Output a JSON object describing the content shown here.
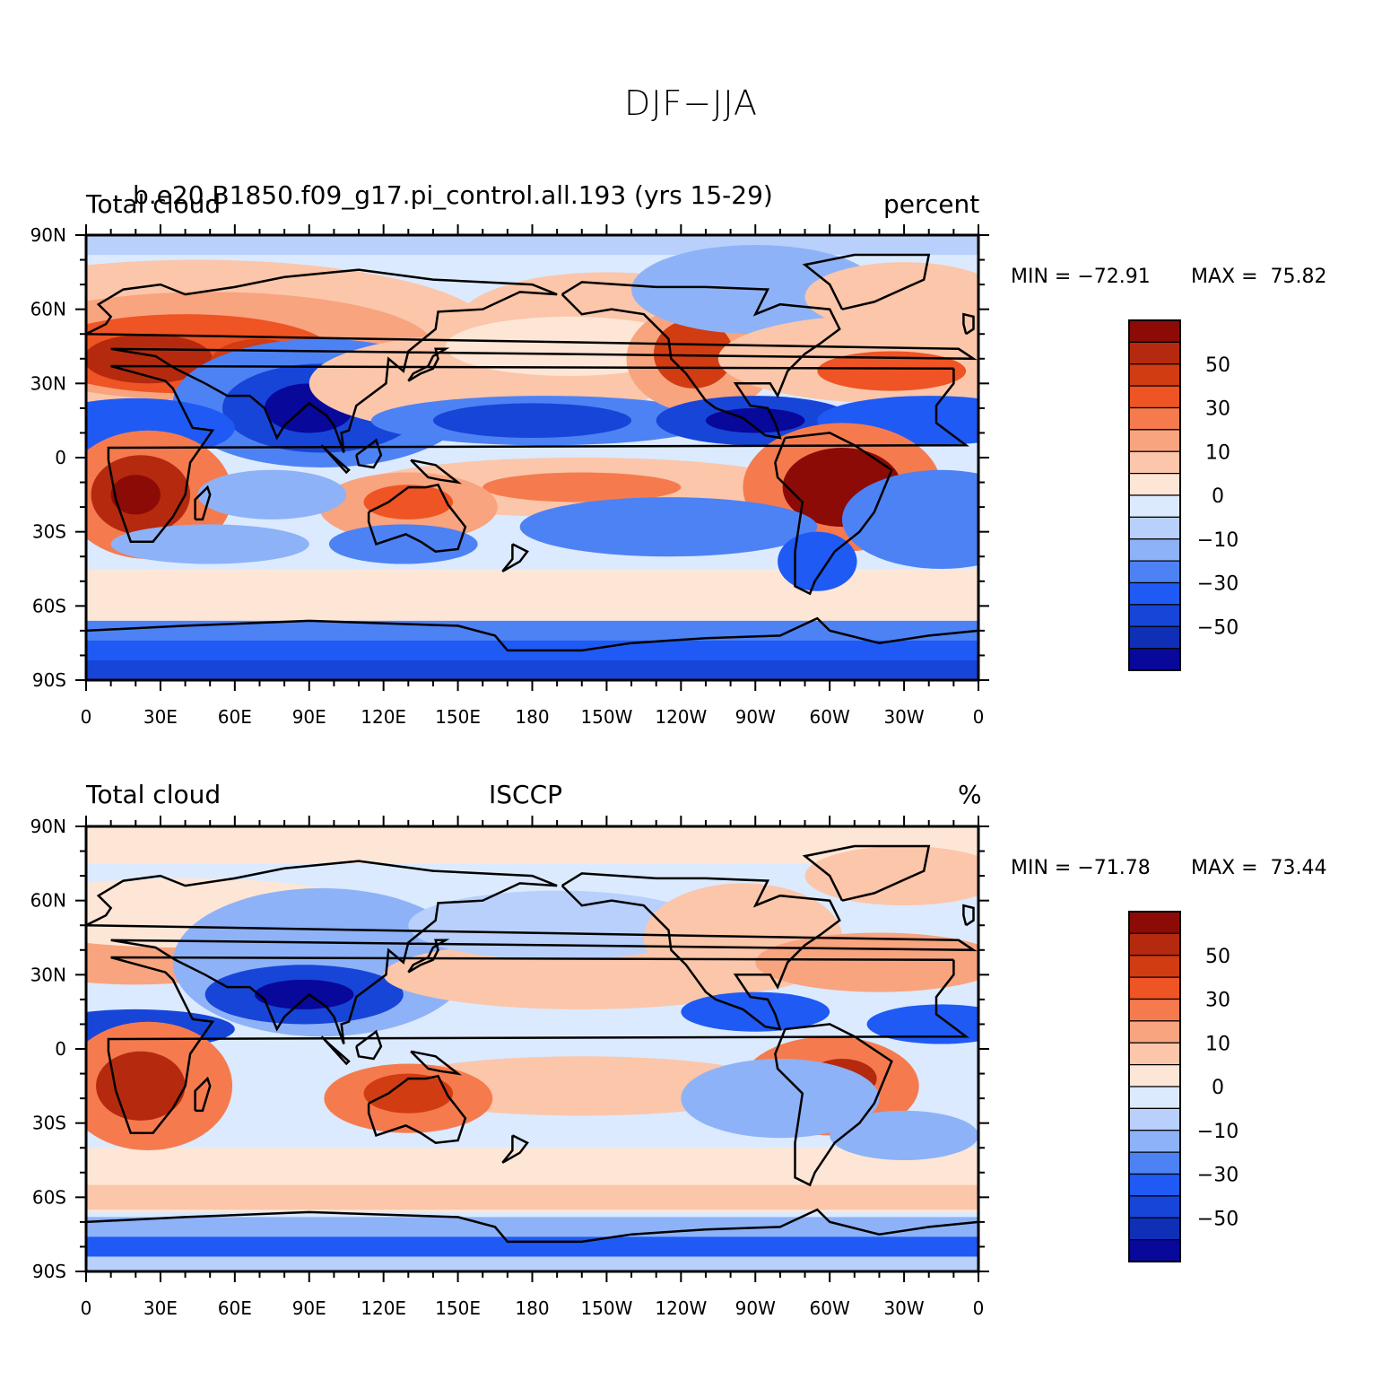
{
  "figure_title": "DJF−JJA",
  "colors": {
    "levels": [
      "#08089a",
      "#0f2fb6",
      "#1745d8",
      "#1f5af5",
      "#4d82f5",
      "#8eb2f7",
      "#b8d0fb",
      "#dbeafe",
      "#fde6d6",
      "#fbc6aa",
      "#f8a47f",
      "#f57b4f",
      "#ee5424",
      "#d13c12",
      "#b52a0e",
      "#8c0b06"
    ],
    "coast": "#000000"
  },
  "axes": {
    "lat_ticks": [
      "90N",
      "60N",
      "30N",
      "0",
      "30S",
      "60S",
      "90S"
    ],
    "lon_ticks": [
      "0",
      "30E",
      "60E",
      "90E",
      "120E",
      "150E",
      "180",
      "150W",
      "120W",
      "90W",
      "60W",
      "30W",
      "0"
    ]
  },
  "panels": [
    {
      "left_title": "Total cloud",
      "center_title": "b.e20.B1850.f09_g17.pi_control.all.193 (yrs 15-29)",
      "right_title": "percent",
      "min_text": "MIN = −72.91",
      "max_text": "MAX =  75.82",
      "colorbar_labels": [
        "50",
        "30",
        "10",
        "0",
        "−10",
        "−30",
        "−50"
      ]
    },
    {
      "left_title": "Total cloud",
      "center_title": "ISCCP",
      "right_title": "%",
      "min_text": "MIN = −71.78",
      "max_text": "MAX =  73.44",
      "colorbar_labels": [
        "50",
        "30",
        "10",
        "0",
        "−10",
        "−30",
        "−50"
      ]
    }
  ]
}
